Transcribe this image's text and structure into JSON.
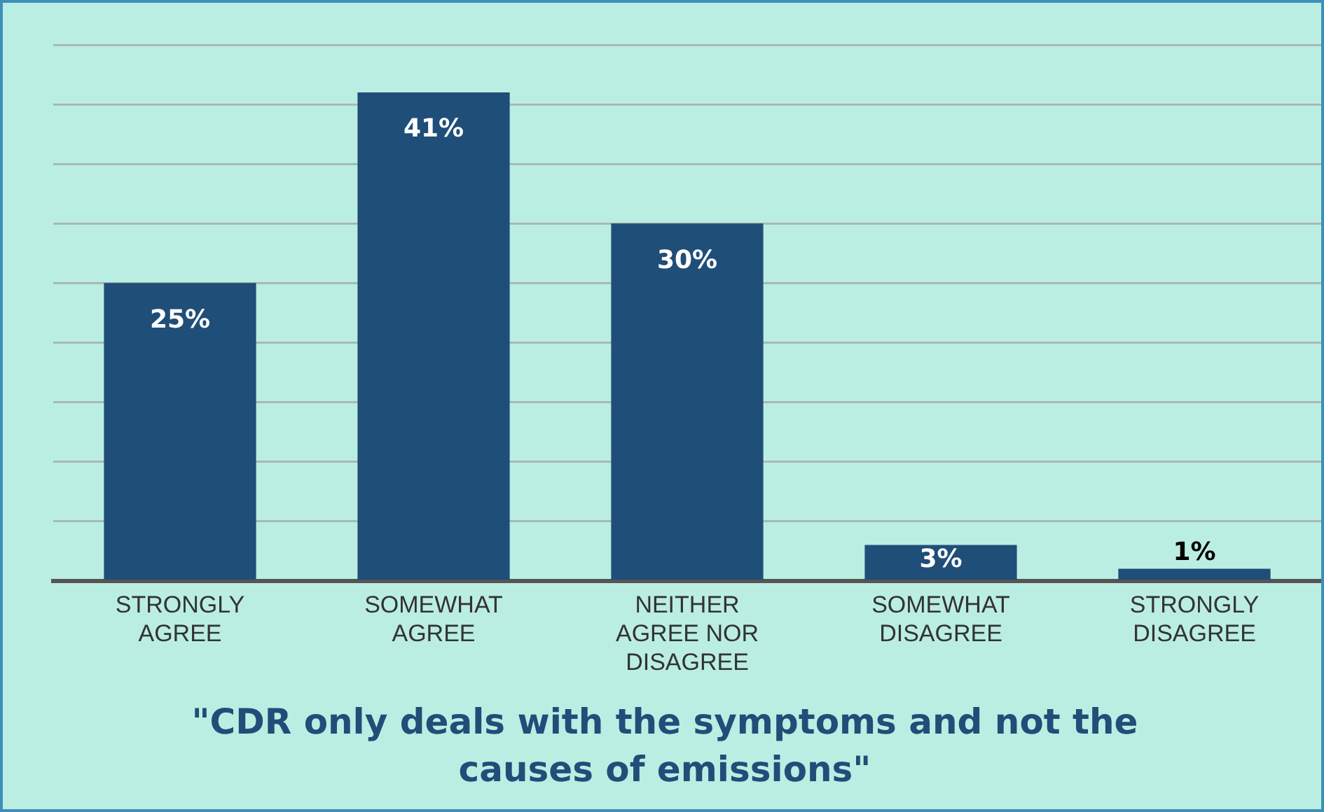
{
  "chart_data": {
    "type": "bar",
    "title": "\"CDR only deals with the symptoms and not the causes of emissions\"",
    "categories": [
      "STRONGLY AGREE",
      "SOMEWHAT AGREE",
      "NEITHER AGREE NOR DISAGREE",
      "SOMEWHAT DISAGREE",
      "STRONGLY DISAGREE"
    ],
    "values": [
      25,
      41,
      30,
      3,
      1
    ],
    "value_labels": [
      "25%",
      "41%",
      "30%",
      "3%",
      "1%"
    ],
    "color": "#1f4e79",
    "ylim": [
      0,
      45
    ],
    "yticks": [
      {
        "value": 0,
        "label": null
      },
      {
        "value": 5,
        "label": null
      },
      {
        "value": 10,
        "label": null
      },
      {
        "value": 15,
        "label": null
      },
      {
        "value": 20,
        "label": null
      },
      {
        "value": 25,
        "label": null
      },
      {
        "value": 30,
        "label": null
      },
      {
        "value": 35,
        "label": null
      },
      {
        "value": 40,
        "label": null
      },
      {
        "value": 45,
        "label": null
      }
    ],
    "grid": "y",
    "legend": false,
    "tick_labels": "x"
  }
}
